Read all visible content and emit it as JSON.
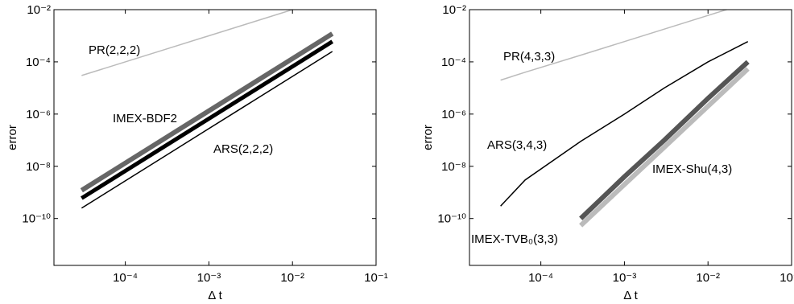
{
  "chart_data": [
    {
      "type": "line",
      "xlabel": "Δ t",
      "ylabel": "error",
      "xscale": "log",
      "yscale": "log",
      "xlim": [
        1.4e-05,
        0.1
      ],
      "ylim": [
        1.6e-12,
        0.01
      ],
      "xticks": [
        {
          "value": 0.0001,
          "label": "10⁻⁴"
        },
        {
          "value": 0.001,
          "label": "10⁻³"
        },
        {
          "value": 0.01,
          "label": "10⁻²"
        },
        {
          "value": 0.1,
          "label": "10⁻¹"
        }
      ],
      "yticks": [
        {
          "value": 1e-10,
          "label": "10⁻¹⁰"
        },
        {
          "value": 1e-08,
          "label": "10⁻⁸"
        },
        {
          "value": 1e-06,
          "label": "10⁻⁶"
        },
        {
          "value": 0.0001,
          "label": "10⁻⁴"
        },
        {
          "value": 0.01,
          "label": "10⁻²"
        }
      ],
      "x": [
        3e-05,
        0.0003,
        0.003,
        0.03
      ],
      "series": [
        {
          "name": "PR(2,2,2)",
          "color": "#bbbbbb",
          "width": 1.5,
          "values": [
            3e-05,
            0.0003,
            0.003,
            0.03
          ]
        },
        {
          "name": "IMEX-BDF2",
          "color": "#666666",
          "width": 6,
          "values": [
            1.2e-09,
            1.2e-07,
            1.2e-05,
            0.0012
          ]
        },
        {
          "color": "#000000",
          "width": 5,
          "values": [
            6e-10,
            6e-08,
            6e-06,
            0.0006
          ]
        },
        {
          "name": "ARS(2,2,2)",
          "color": "#000000",
          "width": 1.5,
          "values": [
            2.5e-10,
            2.5e-08,
            2.5e-06,
            0.00025
          ]
        }
      ]
    },
    {
      "type": "line",
      "xlabel": "Δ t",
      "ylabel": "error",
      "xscale": "log",
      "yscale": "log",
      "xlim": [
        1.4e-05,
        0.1
      ],
      "ylim": [
        1.6e-12,
        0.01
      ],
      "xticks": [
        {
          "value": 0.0001,
          "label": "10⁻⁴"
        },
        {
          "value": 0.001,
          "label": "10⁻³"
        },
        {
          "value": 0.01,
          "label": "10⁻²"
        },
        {
          "value": 0.1,
          "label": "10⁻¹"
        }
      ],
      "yticks": [
        {
          "value": 1e-10,
          "label": "10⁻¹⁰"
        },
        {
          "value": 1e-08,
          "label": "10⁻⁸"
        },
        {
          "value": 1e-06,
          "label": "10⁻⁶"
        },
        {
          "value": 0.0001,
          "label": "10⁻⁴"
        },
        {
          "value": 0.01,
          "label": "10⁻²"
        }
      ],
      "x": [
        3.3e-05,
        6.5e-05,
        0.0003,
        0.001,
        0.003,
        0.01,
        0.03
      ],
      "series": [
        {
          "name": "PR(4,3,3)",
          "color": "#bbbbbb",
          "width": 1.5,
          "values": [
            2e-05,
            4e-05,
            0.00018,
            0.0006,
            0.0018,
            0.006,
            0.018
          ]
        },
        {
          "name": "ARS(3,4,3)",
          "color": "#000000",
          "width": 1.5,
          "values": [
            3e-10,
            3e-09,
            9e-08,
            1e-06,
            1e-05,
            0.0001,
            0.0006
          ]
        },
        {
          "name": "IMEX-Shu(4,3)",
          "color": "#bbbbbb",
          "width": 6,
          "values": [
            null,
            null,
            5.4e-11,
            2e-09,
            5.4e-08,
            2e-06,
            5.4e-05
          ]
        },
        {
          "name": "IMEX-TVB₀(3,3)",
          "color": "#555555",
          "width": 6,
          "values": [
            null,
            null,
            1e-10,
            4e-09,
            1e-07,
            4e-06,
            0.0001
          ]
        }
      ]
    }
  ]
}
